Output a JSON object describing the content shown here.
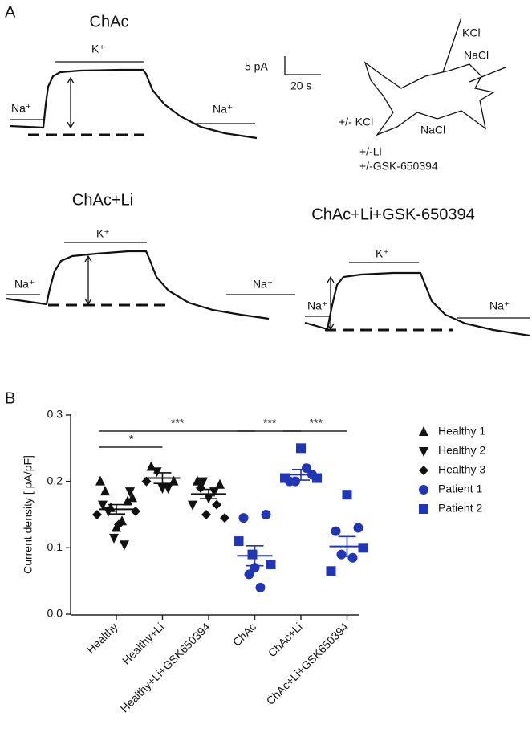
{
  "panel_a": {
    "label": "A",
    "traces": [
      {
        "title": "ChAc",
        "labels": [
          "Na⁺",
          "K⁺",
          "Na⁺"
        ]
      },
      {
        "title": "ChAc+Li",
        "labels": [
          "Na⁺",
          "K⁺",
          "Na⁺"
        ]
      },
      {
        "title": "ChAc+Li+GSK-650394",
        "labels": [
          "Na⁺",
          "K⁺",
          "Na⁺"
        ]
      }
    ],
    "scale_bar": {
      "current": "5 pA",
      "time": "20 s"
    },
    "cell_diagram": {
      "pipette_labels": [
        "KCl",
        "NaCl"
      ],
      "bath_labels": [
        "+/- KCl",
        "NaCl",
        "+/-Li",
        "+/-GSK-650394"
      ]
    }
  },
  "chart_data": {
    "type": "scatter",
    "panel_label": "B",
    "ylabel": "Current density [ pA/pF]",
    "categories": [
      "Healthy",
      "Healthy+Li",
      "Healthy+Li+GSK650394",
      "ChAc",
      "ChAc+Li",
      "ChAc+Li+GSK650394"
    ],
    "ylim": [
      0,
      0.3
    ],
    "yticks": [
      {
        "value": 0,
        "label": "0.0"
      },
      0.1,
      0.2,
      0.3
    ],
    "legend": "right",
    "series": [
      {
        "name": "Healthy 1",
        "color": "#111111",
        "marker": "triangle-up",
        "x": [
          "Healthy",
          "Healthy",
          "Healthy",
          "Healthy",
          "Healthy",
          "Healthy",
          "Healthy",
          "Healthy+Li",
          "Healthy+Li",
          "Healthy+Li+GSK650394",
          "Healthy+Li+GSK650394"
        ],
        "values": [
          0.185,
          0.17,
          0.16,
          0.14,
          0.13,
          0.2,
          0.175,
          0.222,
          0.2,
          0.2,
          0.195
        ]
      },
      {
        "name": "Healthy 2",
        "color": "#111111",
        "marker": "triangle-down",
        "x": [
          "Healthy",
          "Healthy",
          "Healthy",
          "Healthy",
          "Healthy",
          "Healthy+Li",
          "Healthy+Li",
          "Healthy+Li",
          "Healthy+Li+GSK650394",
          "Healthy+Li+GSK650394",
          "Healthy+Li+GSK650394",
          "Healthy+Li+GSK650394"
        ],
        "values": [
          0.115,
          0.105,
          0.155,
          0.185,
          0.165,
          0.215,
          0.19,
          0.19,
          0.2,
          0.185,
          0.175,
          0.165
        ]
      },
      {
        "name": "Healthy 3",
        "color": "#111111",
        "marker": "diamond",
        "x": [
          "Healthy",
          "Healthy",
          "Healthy",
          "Healthy+Li",
          "Healthy+Li+GSK650394",
          "Healthy+Li+GSK650394",
          "Healthy+Li+GSK650394",
          "Healthy+Li+GSK650394"
        ],
        "values": [
          0.135,
          0.15,
          0.155,
          0.2,
          0.145,
          0.15,
          0.165,
          0.19
        ]
      },
      {
        "name": "Patient 1",
        "color": "#2136b4",
        "marker": "circle",
        "x": [
          "ChAc",
          "ChAc",
          "ChAc",
          "ChAc",
          "ChAc",
          "ChAc+Li",
          "ChAc+Li",
          "ChAc+Li",
          "ChAc+Li",
          "ChAc+Li+GSK650394",
          "ChAc+Li+GSK650394",
          "ChAc+Li+GSK650394",
          "ChAc+Li+GSK650394"
        ],
        "values": [
          0.145,
          0.15,
          0.06,
          0.04,
          0.07,
          0.2,
          0.21,
          0.2,
          0.22,
          0.125,
          0.13,
          0.09,
          0.085
        ]
      },
      {
        "name": "Patient 2",
        "color": "#2136b4",
        "marker": "square",
        "x": [
          "ChAc",
          "ChAc",
          "ChAc",
          "ChAc+Li",
          "ChAc+Li",
          "ChAc+Li",
          "ChAc+Li+GSK650394",
          "ChAc+Li+GSK650394",
          "ChAc+Li+GSK650394"
        ],
        "values": [
          0.11,
          0.075,
          0.09,
          0.25,
          0.205,
          0.205,
          0.18,
          0.065,
          0.1
        ]
      }
    ],
    "summary": {
      "mean": [
        0.158,
        0.205,
        0.181,
        0.088,
        0.21,
        0.102
      ],
      "sem": [
        0.007,
        0.008,
        0.007,
        0.015,
        0.008,
        0.015
      ]
    },
    "brackets": [
      {
        "label": "*",
        "between": [
          "Healthy",
          "Healthy+Li"
        ]
      },
      {
        "label": "***",
        "between": [
          "Healthy",
          "ChAc"
        ]
      },
      {
        "label": "***",
        "between": [
          "ChAc",
          "ChAc+Li"
        ]
      },
      {
        "label": "***",
        "between": [
          "ChAc+Li",
          "ChAc+Li+GSK650394"
        ]
      }
    ]
  }
}
